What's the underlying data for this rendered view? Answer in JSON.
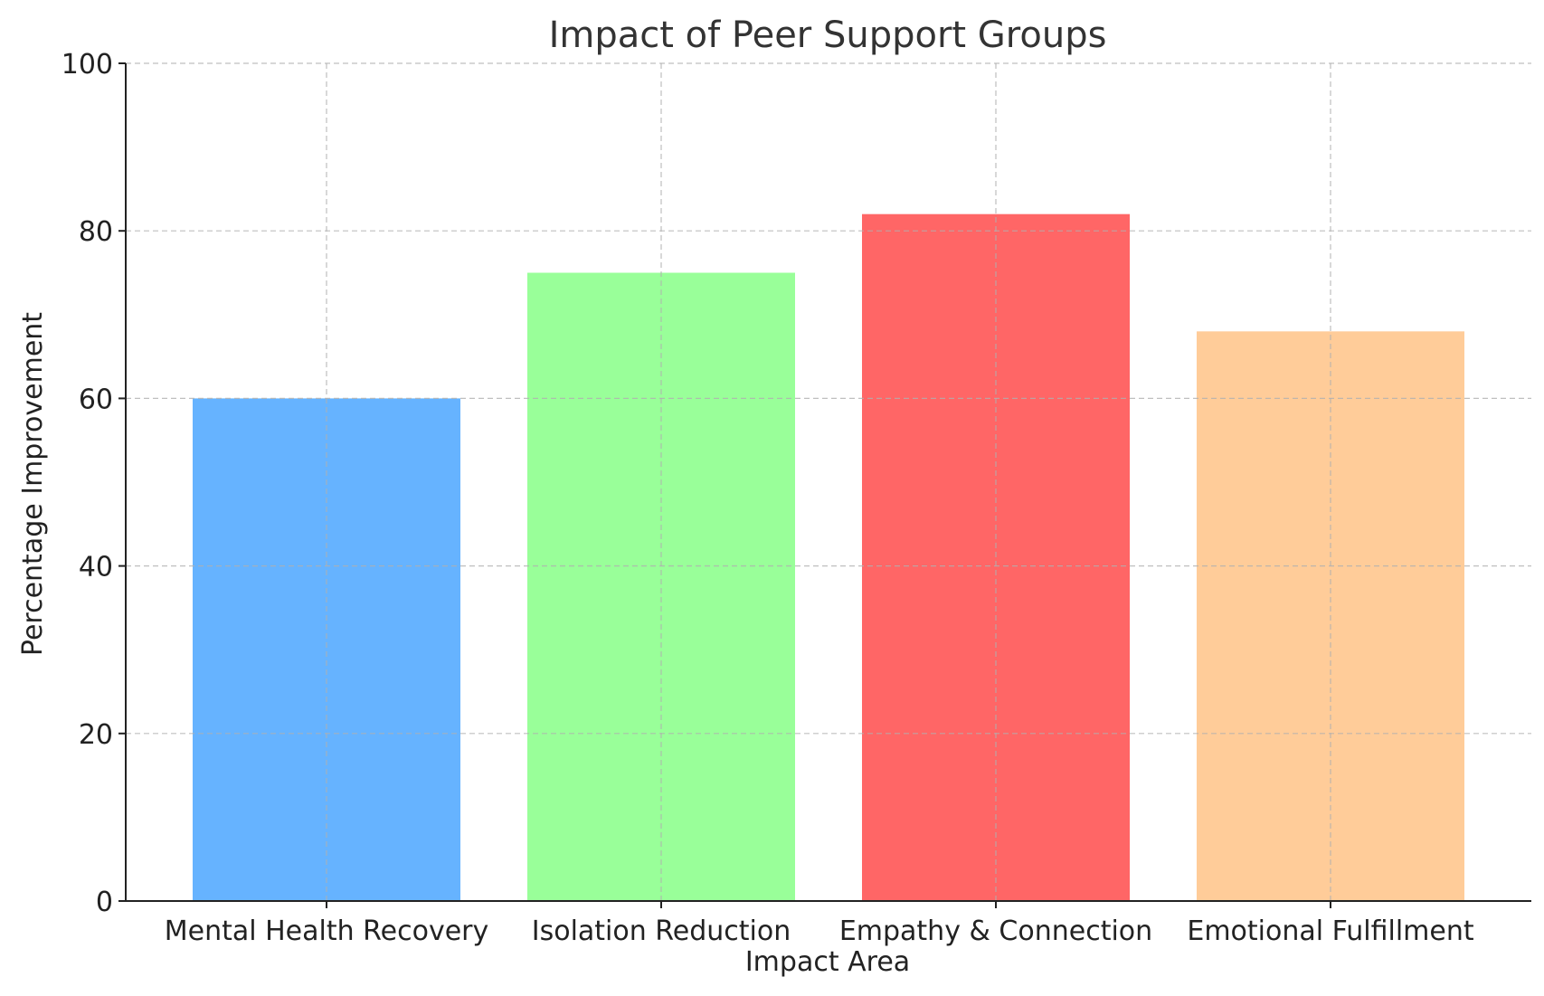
{
  "chart_data": {
    "type": "bar",
    "title": "Impact of Peer Support Groups",
    "xlabel": "Impact Area",
    "ylabel": "Percentage Improvement",
    "categories": [
      "Mental Health Recovery",
      "Isolation Reduction",
      "Empathy & Connection",
      "Emotional Fulfillment"
    ],
    "values": [
      60,
      75,
      82,
      68
    ],
    "colors": [
      "#66b3ff",
      "#99ff99",
      "#ff6666",
      "#ffcc99"
    ],
    "ylim": [
      0,
      100
    ],
    "yticks": [
      0,
      20,
      40,
      60,
      80,
      100
    ],
    "grid": true,
    "legend": "none"
  }
}
